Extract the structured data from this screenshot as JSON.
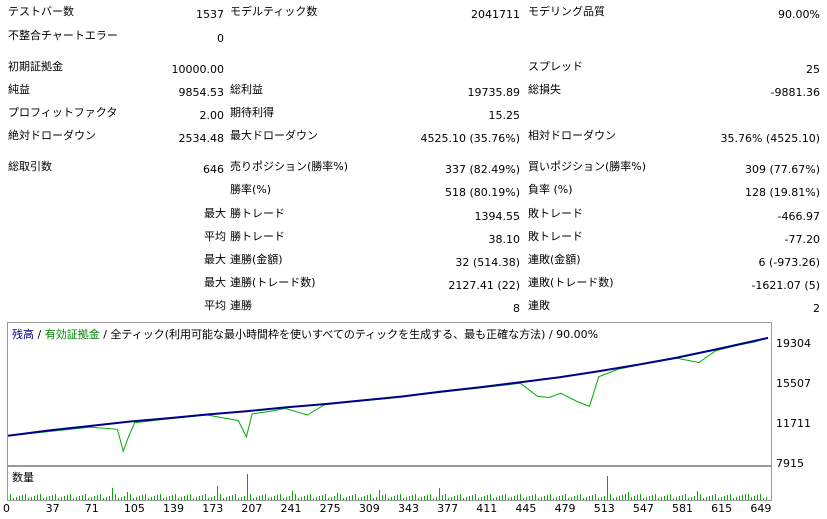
{
  "stats": {
    "test_bars_label": "テストバー数",
    "test_bars_value": "1537",
    "model_ticks_label": "モデルティック数",
    "model_ticks_value": "2041711",
    "model_quality_label": "モデリング品質",
    "model_quality_value": "90.00%",
    "mismatch_label": "不整合チャートエラー",
    "mismatch_value": "0",
    "initial_deposit_label": "初期証拠金",
    "initial_deposit_value": "10000.00",
    "spread_label": "スプレッド",
    "spread_value": "25",
    "net_profit_label": "純益",
    "net_profit_value": "9854.53",
    "gross_profit_label": "総利益",
    "gross_profit_value": "19735.89",
    "gross_loss_label": "総損失",
    "gross_loss_value": "-9881.36",
    "profit_factor_label": "プロフィットファクタ",
    "profit_factor_value": "2.00",
    "expected_payoff_label": "期待利得",
    "expected_payoff_value": "15.25",
    "abs_dd_label": "絶対ドローダウン",
    "abs_dd_value": "2534.48",
    "max_dd_label": "最大ドローダウン",
    "max_dd_value": "4525.10 (35.76%)",
    "rel_dd_label": "相対ドローダウン",
    "rel_dd_value": "35.76% (4525.10)",
    "total_trades_label": "総取引数",
    "total_trades_value": "646",
    "short_label": "売りポジション(勝率%)",
    "short_value": "337 (82.49%)",
    "long_label": "買いポジション(勝率%)",
    "long_value": "309 (77.67%)",
    "win_label": "勝率(%)",
    "win_value": "518 (80.19%)",
    "loss_label": "負率 (%)",
    "loss_value": "128 (19.81%)",
    "max_label": "最大",
    "avg_label": "平均",
    "largest_win_label": "勝トレード",
    "largest_win_value": "1394.55",
    "largest_loss_label": "敗トレード",
    "largest_loss_value": "-466.97",
    "avg_win_label": "勝トレード",
    "avg_win_value": "38.10",
    "avg_loss_label": "敗トレード",
    "avg_loss_value": "-77.20",
    "max_cons_win_label": "連勝(金額)",
    "max_cons_win_value": "32 (514.38)",
    "max_cons_loss_label": "連敗(金額)",
    "max_cons_loss_value": "6 (-973.26)",
    "max_cons_profit_label": "連勝(トレード数)",
    "max_cons_profit_value": "2127.41 (22)",
    "max_cons_lossamt_label": "連敗(トレード数)",
    "max_cons_lossamt_value": "-1621.07 (5)",
    "avg_cons_win_label": "連勝",
    "avg_cons_win_value": "8",
    "avg_cons_loss_label": "連敗",
    "avg_cons_loss_value": "2"
  },
  "chart": {
    "title_balance": "残高",
    "title_sep1": " / ",
    "title_equity": "有効証拠金",
    "title_rest": " / 全ティック(利用可能な最小時間枠を使いすべてのティックを生成する、最も正確な方法) / 90.00%",
    "volume_label": "数量",
    "y_ticks": [
      "19304",
      "15507",
      "11711",
      "7915"
    ],
    "x_ticks": [
      "0",
      "37",
      "71",
      "105",
      "139",
      "173",
      "207",
      "241",
      "275",
      "309",
      "343",
      "377",
      "411",
      "445",
      "479",
      "513",
      "547",
      "581",
      "615",
      "649"
    ],
    "balance_color": "#00008b",
    "equity_color": "#00aa00"
  },
  "chart_data": {
    "type": "line",
    "ylim": [
      7915,
      19800
    ],
    "xlim": [
      0,
      660
    ],
    "series": [
      {
        "name": "残高",
        "x": [
          0,
          37,
          71,
          105,
          139,
          173,
          207,
          241,
          275,
          309,
          343,
          377,
          411,
          445,
          479,
          513,
          547,
          581,
          615,
          649,
          660
        ],
        "values": [
          10400,
          10900,
          11300,
          11700,
          12000,
          12350,
          12650,
          13000,
          13300,
          13650,
          14000,
          14450,
          14850,
          15300,
          15750,
          16300,
          16900,
          17550,
          18300,
          19100,
          19350
        ]
      },
      {
        "name": "有効証拠金",
        "x": [
          0,
          37,
          71,
          95,
          100,
          105,
          110,
          139,
          173,
          200,
          207,
          212,
          225,
          241,
          260,
          275,
          309,
          343,
          360,
          377,
          411,
          445,
          460,
          470,
          480,
          495,
          505,
          513,
          530,
          547,
          581,
          600,
          615,
          635,
          649,
          660
        ],
        "values": [
          10400,
          10800,
          11200,
          11000,
          9000,
          10400,
          11600,
          11950,
          12300,
          11800,
          10300,
          12400,
          12600,
          12900,
          12300,
          13250,
          13600,
          13950,
          14200,
          14400,
          14800,
          15200,
          14000,
          13900,
          14300,
          13500,
          13100,
          15800,
          16500,
          16850,
          17500,
          17100,
          18200,
          18700,
          19000,
          19350
        ]
      }
    ]
  }
}
